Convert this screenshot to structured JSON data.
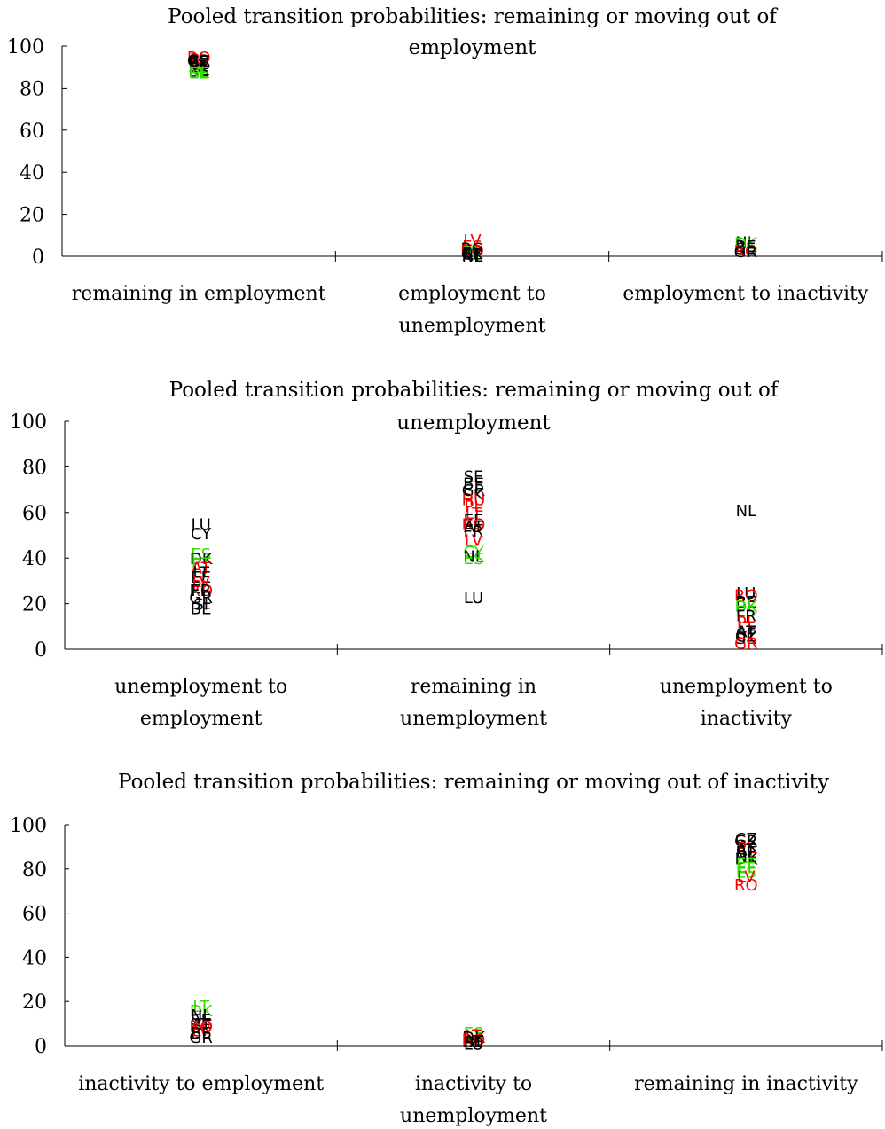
{
  "chart_data": [
    {
      "type": "scatter",
      "title_lines": [
        "Pooled transition probabilities: remaining or moving out of",
        "employment"
      ],
      "ylim": [
        0,
        100
      ],
      "yticks": [
        0,
        20,
        40,
        60,
        80,
        100
      ],
      "categories": [
        {
          "lines": [
            "remaining in employment"
          ]
        },
        {
          "lines": [
            "employment to",
            "unemployment"
          ]
        },
        {
          "lines": [
            "employment to inactivity"
          ]
        }
      ],
      "colors": {
        "black": "#000000",
        "red": "#ff0000",
        "green": "#33dd00"
      },
      "points": [
        {
          "cat": 0,
          "label": "RO",
          "y": 95,
          "color": "red"
        },
        {
          "cat": 0,
          "label": "PL",
          "y": 94,
          "color": "red"
        },
        {
          "cat": 0,
          "label": "GR",
          "y": 93.5,
          "color": "black"
        },
        {
          "cat": 0,
          "label": "CZ",
          "y": 93,
          "color": "black"
        },
        {
          "cat": 0,
          "label": "SK",
          "y": 92.5,
          "color": "black"
        },
        {
          "cat": 0,
          "label": "BE",
          "y": 92,
          "color": "black"
        },
        {
          "cat": 0,
          "label": "LT",
          "y": 91.5,
          "color": "red"
        },
        {
          "cat": 0,
          "label": "AT",
          "y": 91,
          "color": "black"
        },
        {
          "cat": 0,
          "label": "LV",
          "y": 90.5,
          "color": "red"
        },
        {
          "cat": 0,
          "label": "EE",
          "y": 90,
          "color": "black"
        },
        {
          "cat": 0,
          "label": "FR",
          "y": 89.5,
          "color": "black"
        },
        {
          "cat": 0,
          "label": "NL",
          "y": 89,
          "color": "black"
        },
        {
          "cat": 0,
          "label": "SE",
          "y": 88.5,
          "color": "black"
        },
        {
          "cat": 0,
          "label": "NL",
          "y": 88,
          "color": "green"
        },
        {
          "cat": 0,
          "label": "EE",
          "y": 87.5,
          "color": "green"
        },
        {
          "cat": 1,
          "label": "LV",
          "y": 8,
          "color": "red"
        },
        {
          "cat": 1,
          "label": "ES",
          "y": 5,
          "color": "red"
        },
        {
          "cat": 1,
          "label": "BG",
          "y": 4,
          "color": "black"
        },
        {
          "cat": 1,
          "label": "RO",
          "y": 3,
          "color": "red"
        },
        {
          "cat": 1,
          "label": "PL",
          "y": 2.5,
          "color": "green"
        },
        {
          "cat": 1,
          "label": "SK",
          "y": 2,
          "color": "black"
        },
        {
          "cat": 1,
          "label": "CZ",
          "y": 1.5,
          "color": "black"
        },
        {
          "cat": 1,
          "label": "AT",
          "y": 1,
          "color": "black"
        },
        {
          "cat": 1,
          "label": "NL",
          "y": 0.5,
          "color": "black"
        },
        {
          "cat": 2,
          "label": "NL",
          "y": 7,
          "color": "black"
        },
        {
          "cat": 2,
          "label": "DK",
          "y": 6.5,
          "color": "green"
        },
        {
          "cat": 2,
          "label": "BE",
          "y": 5,
          "color": "black"
        },
        {
          "cat": 2,
          "label": "SE",
          "y": 4,
          "color": "black"
        },
        {
          "cat": 2,
          "label": "RO",
          "y": 3,
          "color": "red"
        },
        {
          "cat": 2,
          "label": "GR",
          "y": 2.5,
          "color": "black"
        }
      ]
    },
    {
      "type": "scatter",
      "title_lines": [
        "Pooled transition probabilities: remaining or moving out of",
        "unemployment"
      ],
      "ylim": [
        0,
        100
      ],
      "yticks": [
        0,
        20,
        40,
        60,
        80,
        100
      ],
      "categories": [
        {
          "lines": [
            "unemployment to",
            "employment"
          ]
        },
        {
          "lines": [
            "remaining in",
            "unemployment"
          ]
        },
        {
          "lines": [
            "unemployment to",
            "inactivity"
          ]
        }
      ],
      "colors": {
        "black": "#000000",
        "red": "#ff0000",
        "green": "#33dd00"
      },
      "points": [
        {
          "cat": 0,
          "label": "LU",
          "y": 55,
          "color": "black"
        },
        {
          "cat": 0,
          "label": "CY",
          "y": 51,
          "color": "black"
        },
        {
          "cat": 0,
          "label": "ES",
          "y": 42,
          "color": "green"
        },
        {
          "cat": 0,
          "label": "DK",
          "y": 40,
          "color": "black"
        },
        {
          "cat": 0,
          "label": "PT",
          "y": 38,
          "color": "green"
        },
        {
          "cat": 0,
          "label": "AT",
          "y": 36,
          "color": "red"
        },
        {
          "cat": 0,
          "label": "LT",
          "y": 34,
          "color": "black"
        },
        {
          "cat": 0,
          "label": "EE",
          "y": 32,
          "color": "black"
        },
        {
          "cat": 0,
          "label": "LV",
          "y": 30,
          "color": "red"
        },
        {
          "cat": 0,
          "label": "PL",
          "y": 28,
          "color": "red"
        },
        {
          "cat": 0,
          "label": "RO",
          "y": 26,
          "color": "red"
        },
        {
          "cat": 0,
          "label": "FR",
          "y": 26,
          "color": "black"
        },
        {
          "cat": 0,
          "label": "GR",
          "y": 23,
          "color": "black"
        },
        {
          "cat": 0,
          "label": "SI",
          "y": 20,
          "color": "black"
        },
        {
          "cat": 0,
          "label": "BE",
          "y": 18,
          "color": "black"
        },
        {
          "cat": 1,
          "label": "SE",
          "y": 76,
          "color": "black"
        },
        {
          "cat": 1,
          "label": "BE",
          "y": 73,
          "color": "black"
        },
        {
          "cat": 1,
          "label": "GR",
          "y": 70,
          "color": "black"
        },
        {
          "cat": 1,
          "label": "SK",
          "y": 68,
          "color": "black"
        },
        {
          "cat": 1,
          "label": "HU",
          "y": 66,
          "color": "red"
        },
        {
          "cat": 1,
          "label": "PL",
          "y": 63,
          "color": "red"
        },
        {
          "cat": 1,
          "label": "LT",
          "y": 60,
          "color": "red"
        },
        {
          "cat": 1,
          "label": "EE",
          "y": 57,
          "color": "black"
        },
        {
          "cat": 1,
          "label": "RO",
          "y": 55,
          "color": "red"
        },
        {
          "cat": 1,
          "label": "AT",
          "y": 54,
          "color": "black"
        },
        {
          "cat": 1,
          "label": "FR",
          "y": 52,
          "color": "black"
        },
        {
          "cat": 1,
          "label": "LV",
          "y": 48,
          "color": "red"
        },
        {
          "cat": 1,
          "label": "CY",
          "y": 43,
          "color": "green"
        },
        {
          "cat": 1,
          "label": "NL",
          "y": 41,
          "color": "black"
        },
        {
          "cat": 1,
          "label": "ES",
          "y": 40,
          "color": "green"
        },
        {
          "cat": 1,
          "label": "LU",
          "y": 23,
          "color": "black"
        },
        {
          "cat": 2,
          "label": "NL",
          "y": 61,
          "color": "black"
        },
        {
          "cat": 2,
          "label": "LU",
          "y": 25,
          "color": "black"
        },
        {
          "cat": 2,
          "label": "RO",
          "y": 24,
          "color": "red"
        },
        {
          "cat": 2,
          "label": "BE",
          "y": 21,
          "color": "black"
        },
        {
          "cat": 2,
          "label": "DK",
          "y": 19,
          "color": "green"
        },
        {
          "cat": 2,
          "label": "ES",
          "y": 17,
          "color": "green"
        },
        {
          "cat": 2,
          "label": "FR",
          "y": 15,
          "color": "black"
        },
        {
          "cat": 2,
          "label": "PL",
          "y": 12,
          "color": "red"
        },
        {
          "cat": 2,
          "label": "LT",
          "y": 10,
          "color": "red"
        },
        {
          "cat": 2,
          "label": "AT",
          "y": 8,
          "color": "black"
        },
        {
          "cat": 2,
          "label": "SE",
          "y": 7,
          "color": "black"
        },
        {
          "cat": 2,
          "label": "CZ",
          "y": 6,
          "color": "black"
        },
        {
          "cat": 2,
          "label": "SK",
          "y": 5,
          "color": "black"
        },
        {
          "cat": 2,
          "label": "GR",
          "y": 3,
          "color": "red"
        }
      ]
    },
    {
      "type": "scatter",
      "title_lines": [
        "Pooled transition probabilities: remaining or moving out of inactivity"
      ],
      "ylim": [
        0,
        100
      ],
      "yticks": [
        0,
        20,
        40,
        60,
        80,
        100
      ],
      "categories": [
        {
          "lines": [
            "inactivity to employment"
          ]
        },
        {
          "lines": [
            "inactivity to",
            "unemployment"
          ]
        },
        {
          "lines": [
            "remaining in inactivity"
          ]
        }
      ],
      "colors": {
        "black": "#000000",
        "red": "#ff0000",
        "green": "#33dd00"
      },
      "points": [
        {
          "cat": 0,
          "label": "LT",
          "y": 18,
          "color": "green"
        },
        {
          "cat": 0,
          "label": "DK",
          "y": 16,
          "color": "green"
        },
        {
          "cat": 0,
          "label": "NL",
          "y": 14,
          "color": "black"
        },
        {
          "cat": 0,
          "label": "SE",
          "y": 12,
          "color": "black"
        },
        {
          "cat": 0,
          "label": "AT",
          "y": 10,
          "color": "black"
        },
        {
          "cat": 0,
          "label": "RO",
          "y": 9,
          "color": "red"
        },
        {
          "cat": 0,
          "label": "PL",
          "y": 8,
          "color": "red"
        },
        {
          "cat": 0,
          "label": "LV",
          "y": 7,
          "color": "red"
        },
        {
          "cat": 0,
          "label": "BE",
          "y": 6,
          "color": "black"
        },
        {
          "cat": 0,
          "label": "GR",
          "y": 4,
          "color": "black"
        },
        {
          "cat": 1,
          "label": "ES",
          "y": 6,
          "color": "green"
        },
        {
          "cat": 1,
          "label": "LT",
          "y": 5,
          "color": "red"
        },
        {
          "cat": 1,
          "label": "DK",
          "y": 4,
          "color": "black"
        },
        {
          "cat": 1,
          "label": "RO",
          "y": 3,
          "color": "red"
        },
        {
          "cat": 1,
          "label": "AT",
          "y": 2.5,
          "color": "black"
        },
        {
          "cat": 1,
          "label": "SE",
          "y": 2,
          "color": "black"
        },
        {
          "cat": 1,
          "label": "LU",
          "y": 1,
          "color": "black"
        },
        {
          "cat": 2,
          "label": "CZ",
          "y": 94,
          "color": "black"
        },
        {
          "cat": 2,
          "label": "GR",
          "y": 93,
          "color": "black"
        },
        {
          "cat": 2,
          "label": "SK",
          "y": 91,
          "color": "black"
        },
        {
          "cat": 2,
          "label": "PL",
          "y": 90,
          "color": "red"
        },
        {
          "cat": 2,
          "label": "AT",
          "y": 89,
          "color": "black"
        },
        {
          "cat": 2,
          "label": "BE",
          "y": 88,
          "color": "black"
        },
        {
          "cat": 2,
          "label": "NL",
          "y": 86,
          "color": "black"
        },
        {
          "cat": 2,
          "label": "DK",
          "y": 85,
          "color": "black"
        },
        {
          "cat": 2,
          "label": "EE",
          "y": 83,
          "color": "green"
        },
        {
          "cat": 2,
          "label": "LT",
          "y": 81,
          "color": "green"
        },
        {
          "cat": 2,
          "label": "ES",
          "y": 79,
          "color": "green"
        },
        {
          "cat": 2,
          "label": "LV",
          "y": 77,
          "color": "red"
        },
        {
          "cat": 2,
          "label": "RO",
          "y": 73,
          "color": "red"
        }
      ]
    }
  ]
}
